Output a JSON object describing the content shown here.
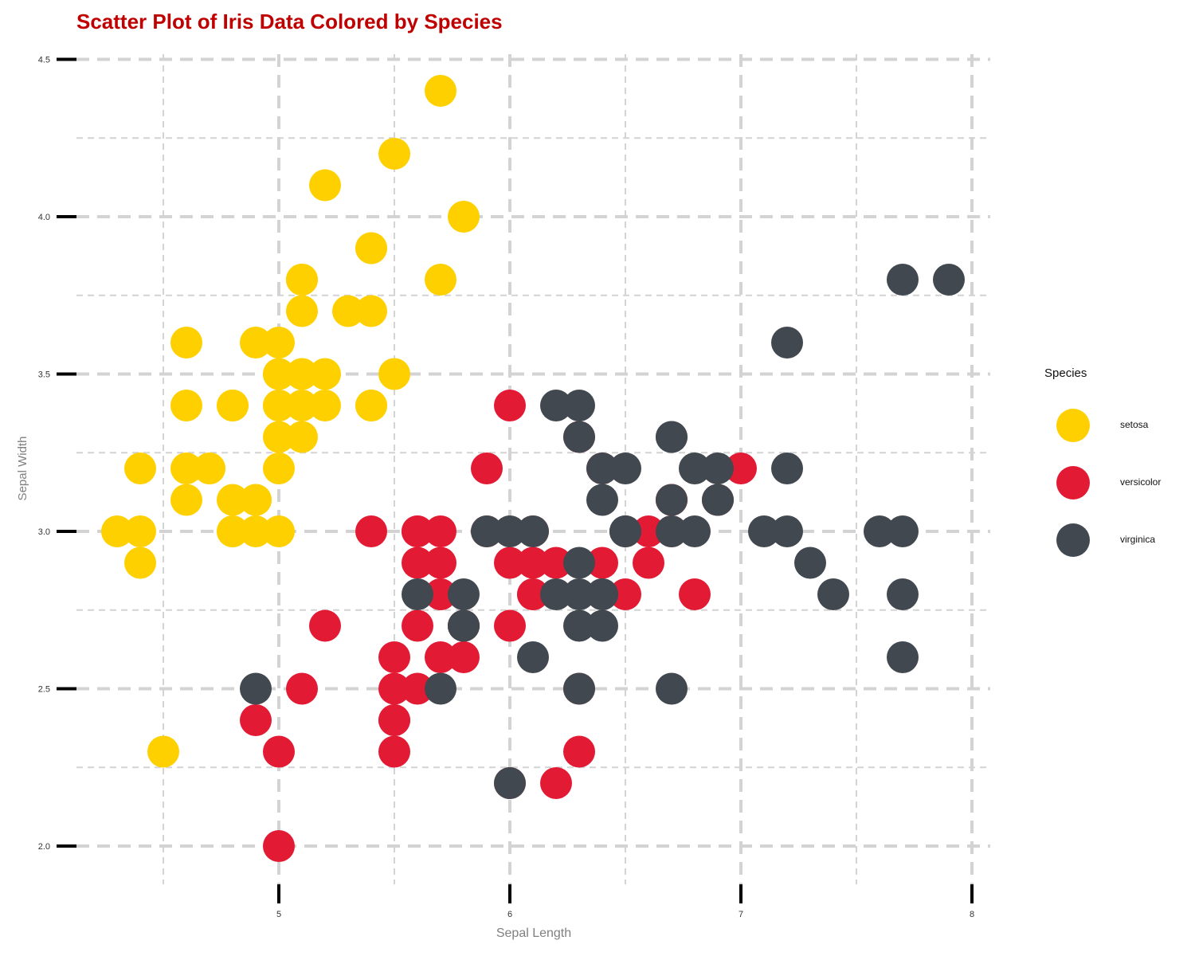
{
  "colors": {
    "title": "#c00000",
    "grid": "#d3d3d3",
    "axis_label": "#808080",
    "setosa": "#ffd000",
    "versicolor": "#e31a33",
    "virginica": "#41484f"
  },
  "chart_data": {
    "type": "scatter",
    "title": "Scatter Plot of Iris Data Colored by Species",
    "xlabel": "Sepal Length",
    "ylabel": "Sepal Width",
    "xlim": [
      4.1,
      8.1
    ],
    "ylim": [
      1.85,
      4.52
    ],
    "x_ticks": [
      5,
      6,
      7,
      8
    ],
    "x_tick_labels": [
      "5",
      "6",
      "7",
      "8"
    ],
    "y_ticks": [
      2.0,
      2.5,
      3.0,
      3.5,
      4.0,
      4.5
    ],
    "y_tick_labels": [
      "2.0",
      "2.5",
      "3.0",
      "3.5",
      "4.0",
      "4.5"
    ],
    "grid": true,
    "legend": {
      "title": "Species",
      "placement": "right"
    },
    "series": [
      {
        "name": "setosa",
        "color": "#ffd000",
        "points": [
          [
            5.1,
            3.5
          ],
          [
            4.9,
            3.0
          ],
          [
            4.7,
            3.2
          ],
          [
            4.6,
            3.1
          ],
          [
            5.0,
            3.6
          ],
          [
            5.4,
            3.9
          ],
          [
            4.6,
            3.4
          ],
          [
            5.0,
            3.4
          ],
          [
            4.4,
            2.9
          ],
          [
            4.9,
            3.1
          ],
          [
            5.4,
            3.7
          ],
          [
            4.8,
            3.4
          ],
          [
            4.8,
            3.0
          ],
          [
            4.3,
            3.0
          ],
          [
            5.8,
            4.0
          ],
          [
            5.7,
            4.4
          ],
          [
            5.4,
            3.9
          ],
          [
            5.1,
            3.5
          ],
          [
            5.7,
            3.8
          ],
          [
            5.1,
            3.8
          ],
          [
            5.4,
            3.4
          ],
          [
            5.1,
            3.7
          ],
          [
            4.6,
            3.6
          ],
          [
            5.1,
            3.3
          ],
          [
            4.8,
            3.4
          ],
          [
            5.0,
            3.0
          ],
          [
            5.0,
            3.4
          ],
          [
            5.2,
            3.5
          ],
          [
            5.2,
            3.4
          ],
          [
            4.7,
            3.2
          ],
          [
            4.8,
            3.1
          ],
          [
            5.4,
            3.4
          ],
          [
            5.2,
            4.1
          ],
          [
            5.5,
            4.2
          ],
          [
            4.9,
            3.1
          ],
          [
            5.0,
            3.2
          ],
          [
            5.5,
            3.5
          ],
          [
            4.9,
            3.6
          ],
          [
            4.4,
            3.0
          ],
          [
            5.1,
            3.4
          ],
          [
            5.0,
            3.5
          ],
          [
            4.5,
            2.3
          ],
          [
            4.4,
            3.2
          ],
          [
            5.0,
            3.5
          ],
          [
            5.1,
            3.8
          ],
          [
            4.8,
            3.0
          ],
          [
            5.1,
            3.8
          ],
          [
            4.6,
            3.2
          ],
          [
            5.3,
            3.7
          ],
          [
            5.0,
            3.3
          ]
        ]
      },
      {
        "name": "versicolor",
        "color": "#e31a33",
        "points": [
          [
            7.0,
            3.2
          ],
          [
            6.4,
            3.2
          ],
          [
            6.9,
            3.1
          ],
          [
            5.5,
            2.3
          ],
          [
            6.5,
            2.8
          ],
          [
            5.7,
            2.8
          ],
          [
            6.3,
            3.3
          ],
          [
            4.9,
            2.4
          ],
          [
            6.6,
            2.9
          ],
          [
            5.2,
            2.7
          ],
          [
            5.0,
            2.0
          ],
          [
            5.9,
            3.0
          ],
          [
            6.0,
            2.2
          ],
          [
            6.1,
            2.9
          ],
          [
            5.6,
            2.9
          ],
          [
            6.7,
            3.1
          ],
          [
            5.6,
            3.0
          ],
          [
            5.8,
            2.7
          ],
          [
            6.2,
            2.2
          ],
          [
            5.6,
            2.5
          ],
          [
            5.9,
            3.2
          ],
          [
            6.1,
            2.8
          ],
          [
            6.3,
            2.5
          ],
          [
            6.1,
            2.8
          ],
          [
            6.4,
            2.9
          ],
          [
            6.6,
            3.0
          ],
          [
            6.8,
            2.8
          ],
          [
            6.7,
            3.0
          ],
          [
            6.0,
            2.9
          ],
          [
            5.7,
            2.6
          ],
          [
            5.5,
            2.4
          ],
          [
            5.5,
            2.4
          ],
          [
            5.8,
            2.7
          ],
          [
            6.0,
            2.7
          ],
          [
            5.4,
            3.0
          ],
          [
            6.0,
            3.4
          ],
          [
            6.7,
            3.1
          ],
          [
            6.3,
            2.3
          ],
          [
            5.6,
            3.0
          ],
          [
            5.5,
            2.5
          ],
          [
            5.5,
            2.6
          ],
          [
            6.1,
            3.0
          ],
          [
            5.8,
            2.6
          ],
          [
            5.0,
            2.3
          ],
          [
            5.6,
            2.7
          ],
          [
            5.7,
            3.0
          ],
          [
            5.7,
            2.9
          ],
          [
            6.2,
            2.9
          ],
          [
            5.1,
            2.5
          ],
          [
            5.7,
            2.8
          ]
        ]
      },
      {
        "name": "virginica",
        "color": "#41484f",
        "points": [
          [
            6.3,
            3.3
          ],
          [
            5.8,
            2.7
          ],
          [
            7.1,
            3.0
          ],
          [
            6.3,
            2.9
          ],
          [
            6.5,
            3.0
          ],
          [
            7.6,
            3.0
          ],
          [
            4.9,
            2.5
          ],
          [
            7.3,
            2.9
          ],
          [
            6.7,
            2.5
          ],
          [
            7.2,
            3.6
          ],
          [
            6.5,
            3.2
          ],
          [
            6.4,
            2.7
          ],
          [
            6.8,
            3.0
          ],
          [
            5.7,
            2.5
          ],
          [
            5.8,
            2.8
          ],
          [
            6.4,
            3.2
          ],
          [
            6.5,
            3.0
          ],
          [
            7.7,
            3.8
          ],
          [
            7.7,
            2.6
          ],
          [
            6.0,
            2.2
          ],
          [
            6.9,
            3.2
          ],
          [
            5.6,
            2.8
          ],
          [
            7.7,
            2.8
          ],
          [
            6.3,
            2.7
          ],
          [
            6.7,
            3.3
          ],
          [
            7.2,
            3.2
          ],
          [
            6.2,
            2.8
          ],
          [
            6.1,
            3.0
          ],
          [
            6.4,
            2.8
          ],
          [
            7.2,
            3.0
          ],
          [
            7.4,
            2.8
          ],
          [
            7.9,
            3.8
          ],
          [
            6.4,
            2.8
          ],
          [
            6.3,
            2.8
          ],
          [
            6.1,
            2.6
          ],
          [
            7.7,
            3.0
          ],
          [
            6.3,
            3.4
          ],
          [
            6.4,
            3.1
          ],
          [
            6.0,
            3.0
          ],
          [
            6.9,
            3.1
          ],
          [
            6.7,
            3.1
          ],
          [
            6.9,
            3.1
          ],
          [
            5.8,
            2.7
          ],
          [
            6.8,
            3.2
          ],
          [
            6.7,
            3.3
          ],
          [
            6.7,
            3.0
          ],
          [
            6.3,
            2.5
          ],
          [
            6.5,
            3.0
          ],
          [
            6.2,
            3.4
          ],
          [
            5.9,
            3.0
          ]
        ]
      }
    ]
  }
}
